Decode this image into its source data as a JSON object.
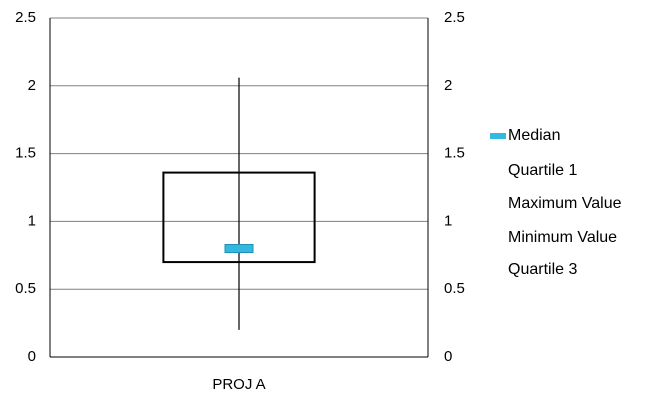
{
  "chart_data": {
    "type": "box",
    "categories": [
      "PROJ A"
    ],
    "series": [
      {
        "name": "Median",
        "color": "#33b9e0",
        "values": [
          0.8
        ]
      },
      {
        "name": "Quartile 1",
        "values": [
          0.7
        ]
      },
      {
        "name": "Maximum Value",
        "values": [
          2.06
        ]
      },
      {
        "name": "Minimum Value",
        "values": [
          0.2
        ]
      },
      {
        "name": "Quartile 3",
        "values": [
          1.36
        ]
      }
    ],
    "ylim": [
      0,
      2.5
    ],
    "yticks": [
      0,
      0.5,
      1,
      1.5,
      2,
      2.5
    ],
    "y2lim": [
      0,
      2.5
    ],
    "y2ticks": [
      0,
      0.5,
      1,
      1.5,
      2,
      2.5
    ],
    "grid": true,
    "legend": "right"
  }
}
